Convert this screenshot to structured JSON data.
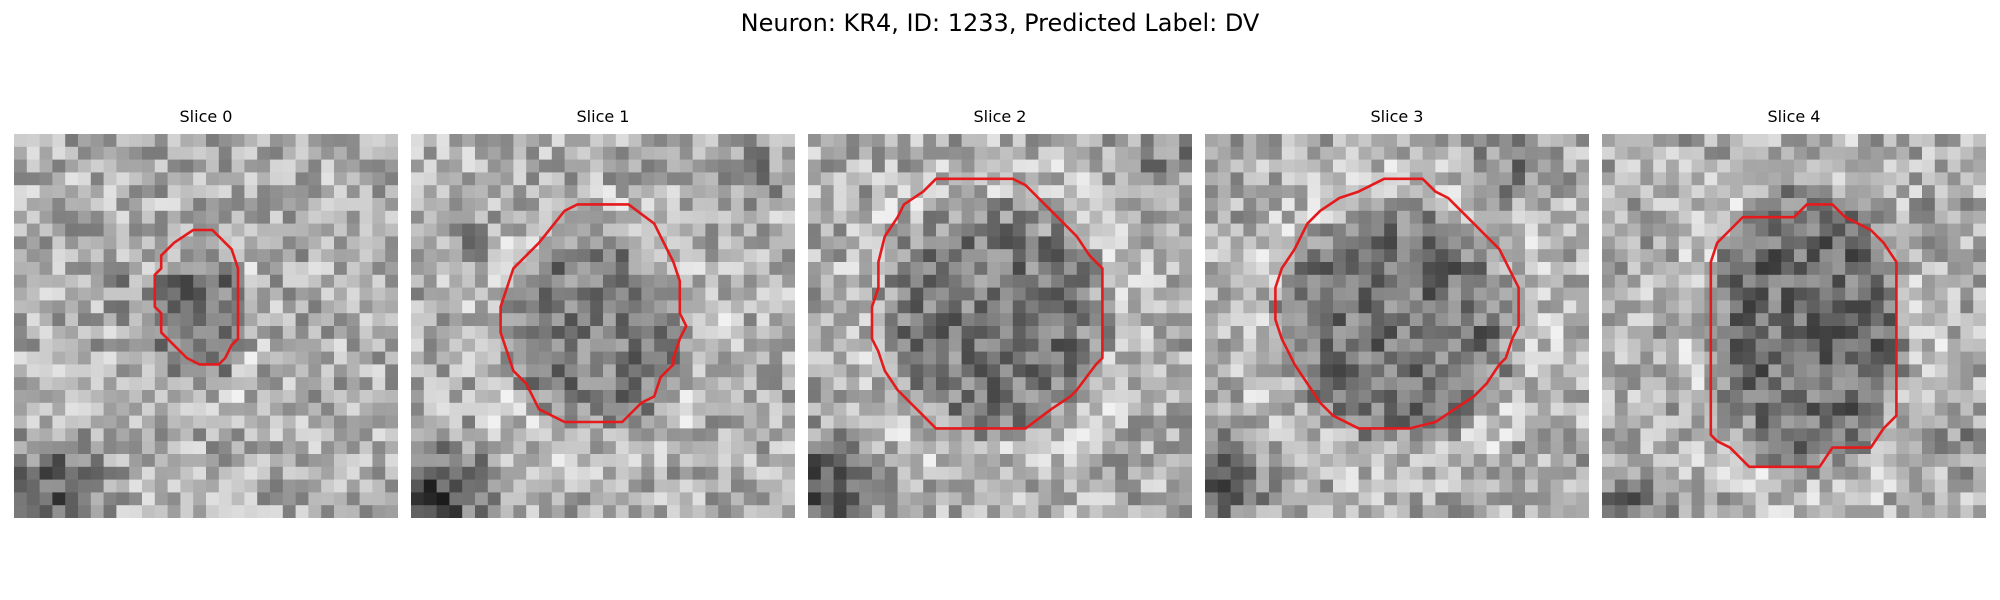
{
  "figure": {
    "title": "Neuron: KR4, ID: 1233, Predicted Label: DV",
    "panels": [
      {
        "title": "Slice 0"
      },
      {
        "title": "Slice 1"
      },
      {
        "title": "Slice 2"
      },
      {
        "title": "Slice 3"
      },
      {
        "title": "Slice 4"
      }
    ],
    "image": {
      "colormap": "grayscale",
      "grid_cells": 30,
      "contour_color": "#e41a1c"
    }
  }
}
